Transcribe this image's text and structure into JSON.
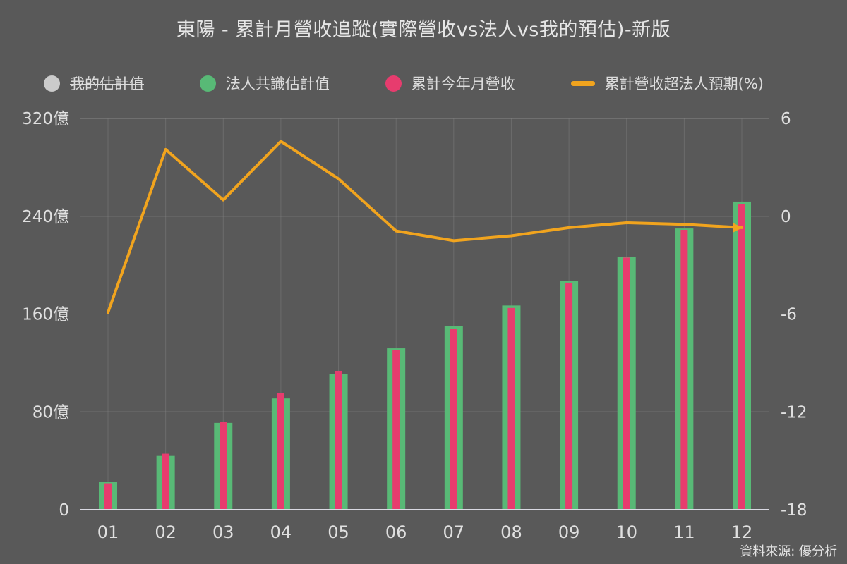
{
  "title": "東陽 - 累計月營收追蹤(實際營收vs法人vs我的預估)-新版",
  "source_note": "資料來源: 優分析",
  "colors": {
    "background": "#595959",
    "title_text": "#e6e6e6",
    "axis_text": "#e0e0e0",
    "grid_horizontal": "#868686",
    "grid_vertical": "#6c6c6c",
    "baseline": "#d9d9e2",
    "my_estimate_gray": "#cbcbcb",
    "consensus_green": "#58b976",
    "actual_pink": "#e73c6e",
    "pct_line_orange": "#f1a41e"
  },
  "legend": {
    "items": [
      {
        "label": "我的估計值",
        "marker": "circle",
        "color": "#cbcbcb",
        "disabled": true
      },
      {
        "label": "法人共識估計值",
        "marker": "circle",
        "color": "#58b976",
        "disabled": false
      },
      {
        "label": "累計今年月營收",
        "marker": "circle",
        "color": "#e73c6e",
        "disabled": false
      },
      {
        "label": "累計營收超法人預期(%)",
        "marker": "dash",
        "color": "#f1a41e",
        "disabled": false
      }
    ]
  },
  "chart_data": {
    "type": "bar+line",
    "categories": [
      "01",
      "02",
      "03",
      "04",
      "05",
      "06",
      "07",
      "08",
      "09",
      "10",
      "11",
      "12"
    ],
    "unit": "億",
    "series": [
      {
        "name": "我的估計值",
        "type": "bar",
        "color": "#cbcbcb",
        "hidden": true,
        "values": []
      },
      {
        "name": "法人共識估計值",
        "type": "bar",
        "axis": "left",
        "color": "#58b976",
        "values": [
          23,
          44,
          71,
          91,
          111,
          132,
          150,
          167,
          187,
          207,
          230,
          252
        ]
      },
      {
        "name": "累計今年月營收",
        "type": "bar",
        "axis": "left",
        "color": "#e73c6e",
        "values": [
          21.6,
          45.8,
          71.7,
          95.2,
          113.6,
          130.8,
          147.8,
          165.0,
          185.7,
          206.2,
          228.9,
          250.2
        ]
      },
      {
        "name": "累計營收超法人預期(%)",
        "type": "line",
        "axis": "right",
        "color": "#f1a41e",
        "values": [
          -5.9,
          4.1,
          1.0,
          4.6,
          2.3,
          -0.9,
          -1.5,
          -1.2,
          -0.7,
          -0.4,
          -0.5,
          -0.7
        ]
      }
    ],
    "left_axis": {
      "range": [
        0,
        320
      ],
      "ticks": [
        0,
        80,
        160,
        240,
        320
      ],
      "tick_labels": [
        "0",
        "80億",
        "160億",
        "240億",
        "320億"
      ]
    },
    "right_axis": {
      "range": [
        -18,
        6
      ],
      "ticks": [
        -18,
        -12,
        -6,
        0,
        6
      ],
      "tick_labels": [
        "-18",
        "-12",
        "-6",
        "0",
        "6"
      ]
    },
    "x_axis": {
      "labels": [
        "01",
        "02",
        "03",
        "04",
        "05",
        "06",
        "07",
        "08",
        "09",
        "10",
        "11",
        "12"
      ]
    },
    "grid": true,
    "legend_position": "top"
  }
}
